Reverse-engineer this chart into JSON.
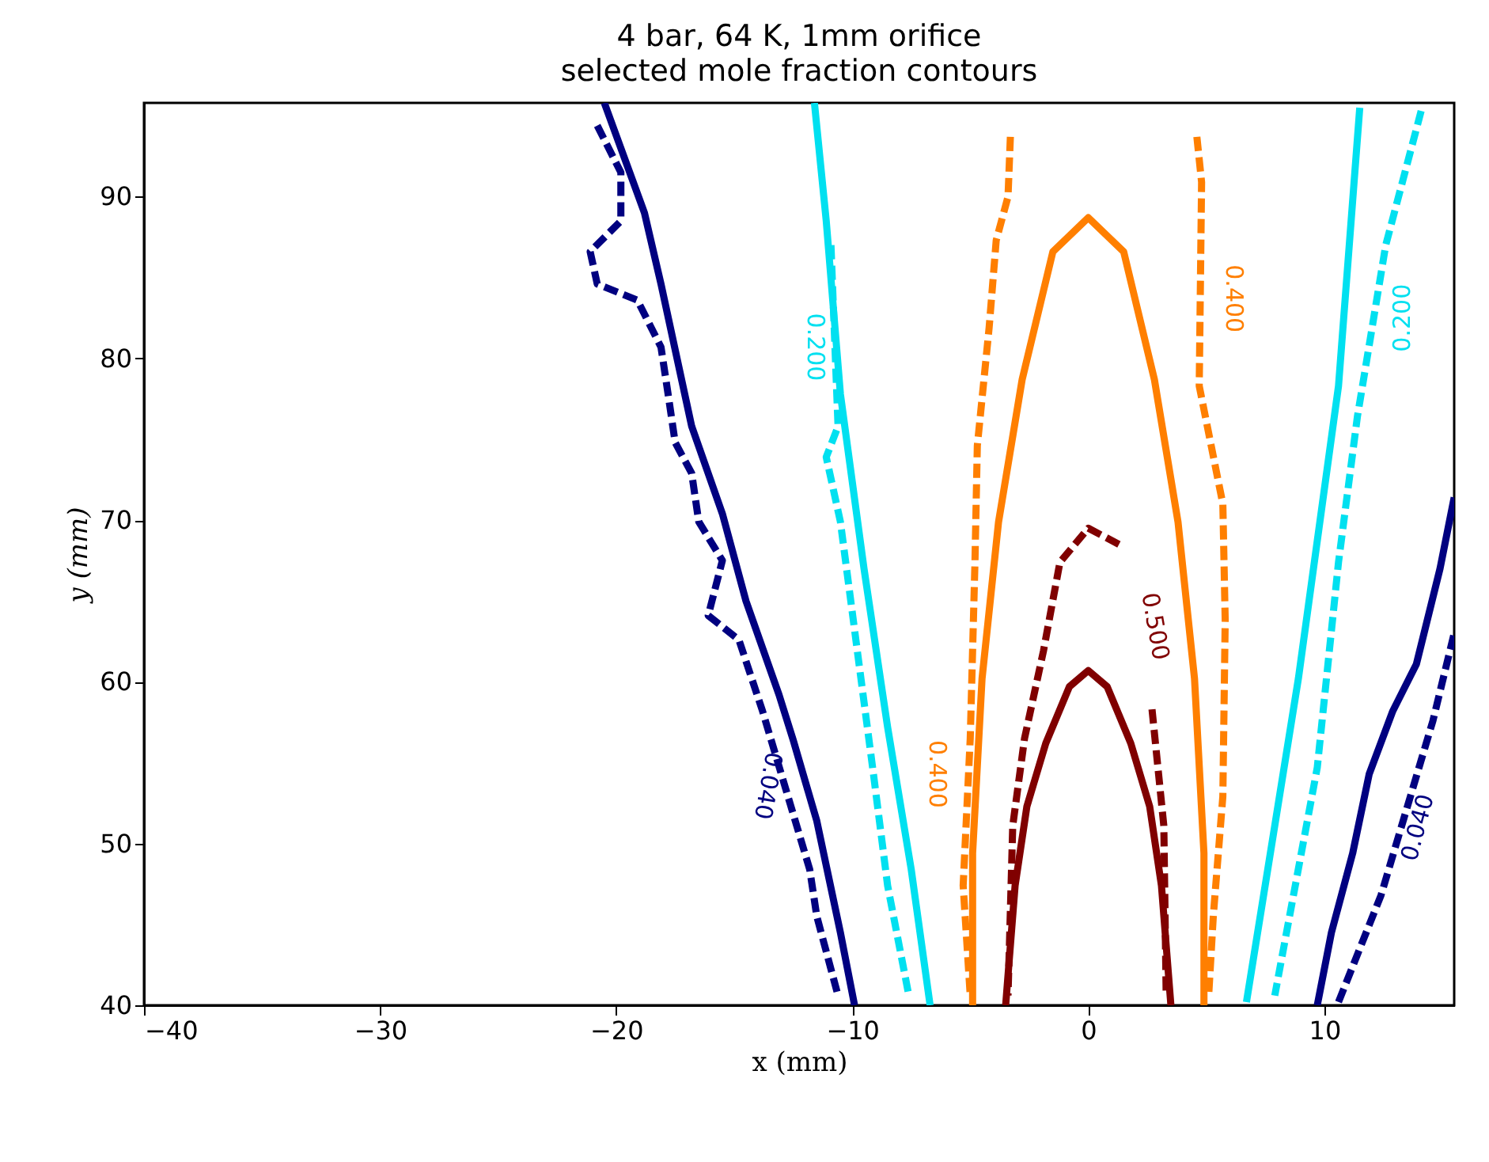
{
  "chart_data": {
    "type": "line",
    "title": "4 bar, 64 K, 1mm orifice",
    "subtitle": "selected mole fraction contours",
    "xlabel": "x (mm)",
    "ylabel": "y (mm)",
    "xlim": [
      -40,
      15.5
    ],
    "ylim": [
      40,
      95.8
    ],
    "xticks": [
      -40,
      -30,
      -20,
      -10,
      0,
      10
    ],
    "yticks": [
      40,
      50,
      60,
      70,
      80,
      90
    ],
    "grid": false,
    "marker": "none",
    "series": [
      {
        "color": "#000080",
        "line_style": "solid",
        "x": [
          -20.5,
          -18.8,
          -18.1,
          -16.8,
          -15.5,
          -14.5,
          -13.1,
          -12.5,
          -11.5,
          -10.5,
          -9.9
        ],
        "values": [
          95.8,
          89,
          84.6,
          75.8,
          70.4,
          65,
          59.2,
          56.4,
          51.4,
          44.5,
          40
        ]
      },
      {
        "color": "#000080",
        "line_style": "dashed",
        "x": [
          -20.8,
          -19.8,
          -19.8,
          -21.1,
          -20.8,
          -19.1,
          -18.1,
          -17.8,
          -17.5,
          -16.8,
          -16.5,
          -15.5,
          -16.1,
          -14.8,
          -13.8,
          -11.8,
          -11.5,
          -10.6
        ],
        "values": [
          94.4,
          91.5,
          88.5,
          86.6,
          84.6,
          83.6,
          80.7,
          77.8,
          74.8,
          72.9,
          69.9,
          67.5,
          64.1,
          62.6,
          58.2,
          48.4,
          45.5,
          40.6
        ]
      },
      {
        "color": "#000080",
        "line_style": "solid",
        "x": [
          9.7,
          10.3,
          11.2,
          11.9,
          12.9,
          13.9,
          14.9,
          15.5
        ],
        "values": [
          40,
          44.5,
          49.4,
          54.3,
          58.2,
          61.1,
          67,
          71.4
        ]
      },
      {
        "color": "#000080",
        "line_style": "dashed",
        "x": [
          10.6,
          12.4,
          14.6,
          15.5
        ],
        "values": [
          40.2,
          46.8,
          57.6,
          63
        ]
      },
      {
        "color": "#00e0f0",
        "line_style": "solid",
        "x": [
          -11.6,
          -11.1,
          -10.5,
          -9.5,
          -8.5,
          -7.5,
          -6.7
        ],
        "values": [
          95.8,
          88.5,
          77.8,
          67,
          57.2,
          48.4,
          40
        ]
      },
      {
        "color": "#00e0f0",
        "line_style": "dashed",
        "x": [
          -10.9,
          -10.6,
          -11.1,
          -10.5,
          -9.8,
          -9.1,
          -8.5,
          -7.6
        ],
        "values": [
          87,
          75.8,
          73.9,
          69.9,
          62.1,
          54.3,
          47.4,
          40.6
        ]
      },
      {
        "color": "#00e0f0",
        "line_style": "solid",
        "x": [
          11.5,
          10.6,
          8.9,
          6.7
        ],
        "values": [
          95.5,
          78.3,
          60.2,
          40.2
        ]
      },
      {
        "color": "#00e0f0",
        "line_style": "dashed",
        "x": [
          14.1,
          12.6,
          11.4,
          10.6,
          9.7,
          7.9
        ],
        "values": [
          95.3,
          87,
          76.4,
          67.4,
          54.7,
          40.6
        ]
      },
      {
        "color": "#ff7f00",
        "line_style": "solid",
        "x": [
          -4.9,
          -4.9,
          -4.5,
          -3.8,
          -2.8,
          -1.5,
          0,
          1.5,
          2.8,
          3.8,
          4.5,
          4.9,
          4.9
        ],
        "values": [
          40,
          49.4,
          60.2,
          69.9,
          78.7,
          86.6,
          88.7,
          86.6,
          78.7,
          69.9,
          60.2,
          49.4,
          40
        ]
      },
      {
        "color": "#ff7f00",
        "line_style": "dashed",
        "x": [
          -3.3,
          -3.4,
          -3.9,
          -4.2,
          -4.7,
          -4.8,
          -5.0,
          -5.3,
          -5.0
        ],
        "values": [
          93.7,
          90,
          87.3,
          81.9,
          74.6,
          67.4,
          56.5,
          47.4,
          40.6
        ]
      },
      {
        "color": "#ff7f00",
        "line_style": "dashed",
        "x": [
          4.6,
          4.8,
          4.7,
          5.7,
          5.8,
          5.7,
          5.3,
          5.1
        ],
        "values": [
          93.7,
          90.9,
          78.3,
          71,
          63.8,
          52.9,
          45.6,
          40.6
        ]
      },
      {
        "color": "#800000",
        "line_style": "solid",
        "x": [
          -3.5,
          -3.1,
          -2.6,
          -1.8,
          -0.8,
          0,
          0.8,
          1.8,
          2.6,
          3.1,
          3.5
        ],
        "values": [
          40,
          47.4,
          52.3,
          56.2,
          59.7,
          60.7,
          59.7,
          56.2,
          52.3,
          47.4,
          40
        ]
      },
      {
        "color": "#800000",
        "line_style": "dashed",
        "x": [
          1.3,
          0,
          -1.2,
          -1.9,
          -2.7,
          -3.2,
          -3.4
        ],
        "values": [
          68.5,
          69.5,
          67.4,
          61.9,
          56.5,
          51.1,
          40.6
        ]
      },
      {
        "color": "#800000",
        "line_style": "dashed",
        "x": [
          2.7,
          3.2,
          3.3
        ],
        "values": [
          58.3,
          51.1,
          40.6
        ]
      }
    ],
    "annotations": [
      {
        "text": "0.040",
        "x": -12.5,
        "y": 53.3
      },
      {
        "text": "0.040",
        "x": 12.9,
        "y": 51.4
      },
      {
        "text": "0.200",
        "x": -10.6,
        "y": 80.7
      },
      {
        "text": "0.200",
        "x": 12.2,
        "y": 82.5
      },
      {
        "text": "0.400",
        "x": -5.3,
        "y": 54.3
      },
      {
        "text": "0.400",
        "x": 5.1,
        "y": 83.7
      },
      "0.500"
    ]
  }
}
